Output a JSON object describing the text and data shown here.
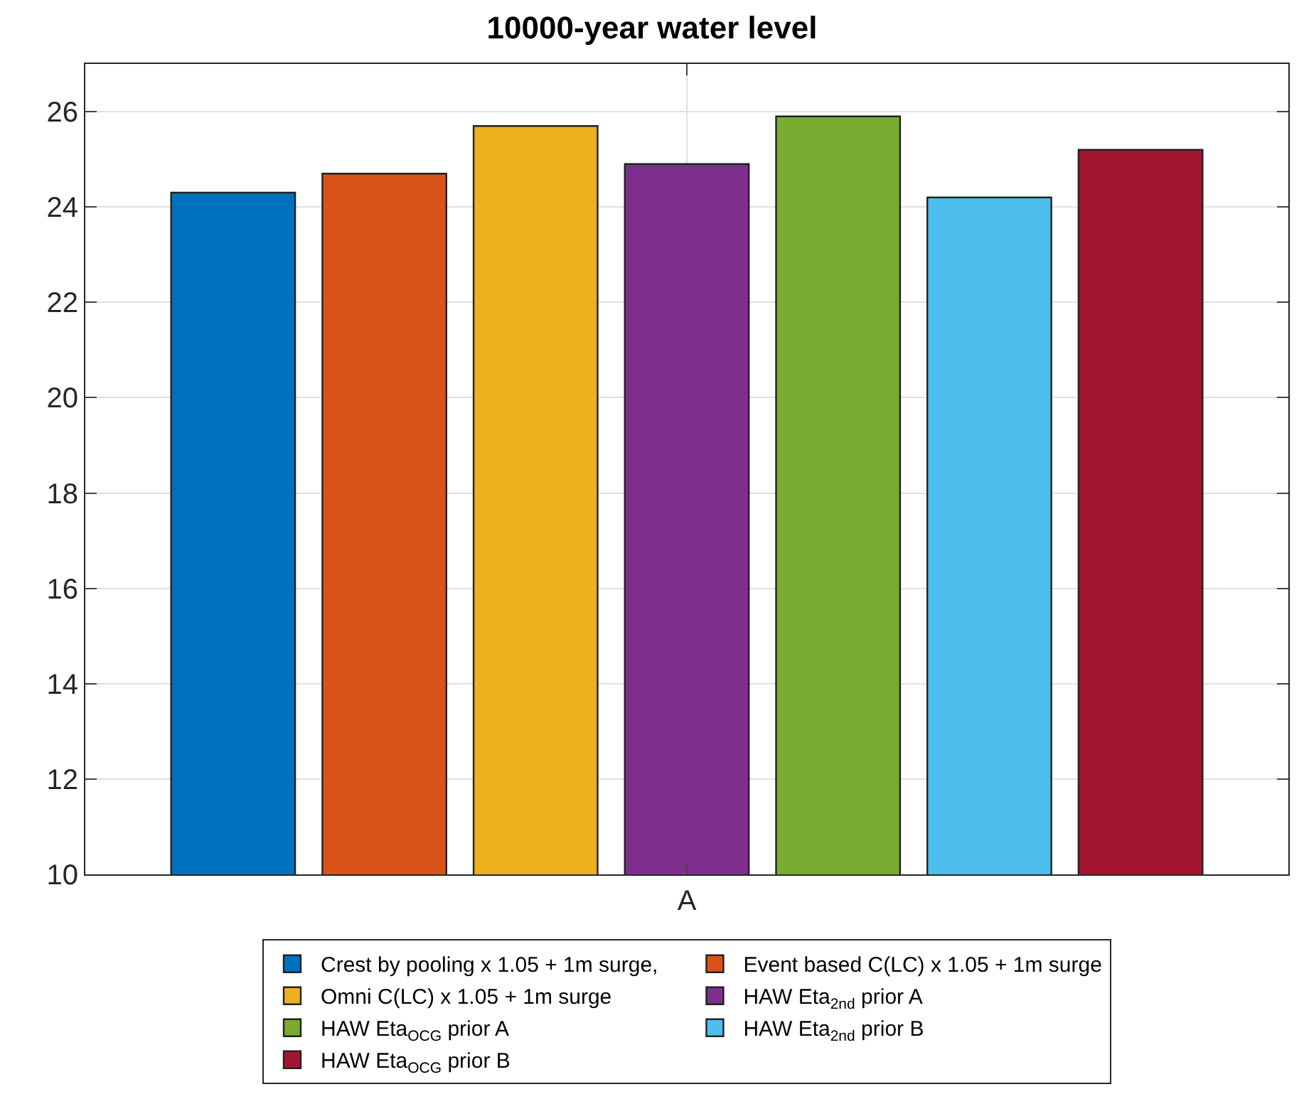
{
  "chart_data": {
    "type": "bar",
    "title": "10000-year water level",
    "categories": [
      "A"
    ],
    "series": [
      {
        "name": "Crest by pooling x 1.05 + 1m surge,",
        "color": "#0072bd",
        "values": [
          24.3
        ]
      },
      {
        "name": "Event based C(LC) x 1.05 + 1m surge",
        "color": "#d95319",
        "values": [
          24.7
        ]
      },
      {
        "name": "Omni C(LC) x 1.05 + 1m surge",
        "color": "#edb120",
        "values": [
          25.7
        ]
      },
      {
        "name": "HAW Eta$_{2nd}$ prior A",
        "color": "#7e2f8e",
        "values": [
          24.9
        ]
      },
      {
        "name": "HAW Eta$_{OCG}$ prior A",
        "color": "#77ac30",
        "values": [
          25.9
        ]
      },
      {
        "name": "HAW Eta$_{2nd}$ prior B",
        "color": "#4dbeee",
        "values": [
          24.2
        ]
      },
      {
        "name": "HAW Eta$_{OCG}$ prior B",
        "color": "#a2142f",
        "values": [
          25.2
        ]
      }
    ],
    "ylim": [
      10,
      27
    ],
    "yticks": [
      10,
      12,
      14,
      16,
      18,
      20,
      22,
      24,
      26
    ],
    "grid": true,
    "legend": "bottom"
  }
}
